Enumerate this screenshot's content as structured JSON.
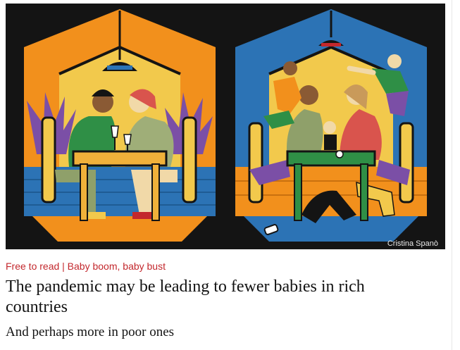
{
  "article": {
    "image": {
      "credit": "Cristina Spanò",
      "colors": {
        "frame": "#141414",
        "left_wall": "#f2901c",
        "right_wall": "#2c73b5",
        "glow": "#f2c94c",
        "floor": "#f2901c",
        "table": "#f0b13a",
        "green": "#2f8f46",
        "plant": "#7b4fa6"
      }
    },
    "kicker": "Free to read | Baby boom, baby bust",
    "headline": "The pandemic may be leading to fewer babies in rich countries",
    "subheadline": "And perhaps more in poor ones"
  }
}
